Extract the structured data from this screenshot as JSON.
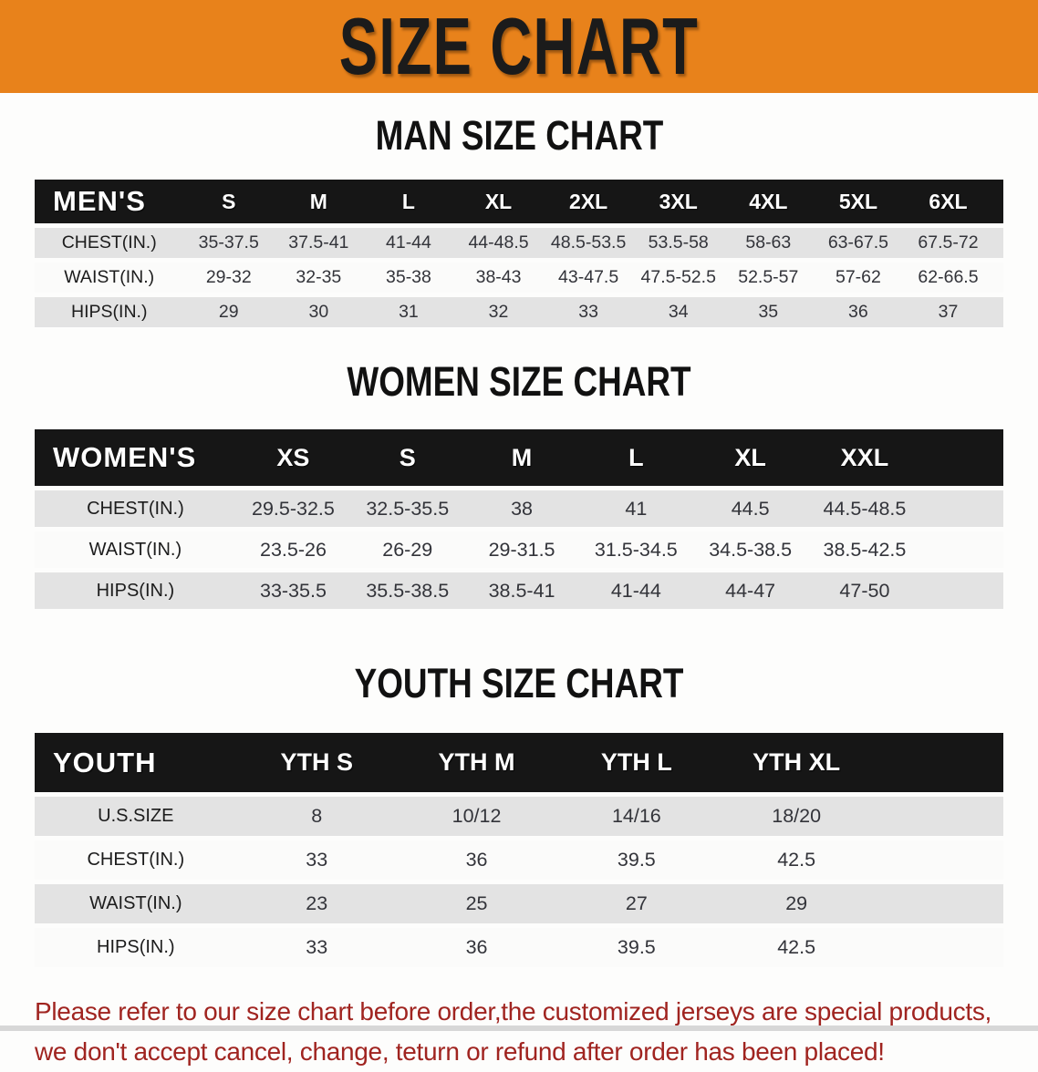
{
  "banner": {
    "title": "SIZE CHART",
    "bg_color": "#e8821b",
    "text_color": "#1b1b1b"
  },
  "sections": [
    {
      "id": "men",
      "heading": "MAN SIZE CHART",
      "table": {
        "header_label": "MEN'S",
        "columns": [
          "S",
          "M",
          "L",
          "XL",
          "2XL",
          "3XL",
          "4XL",
          "5XL",
          "6XL"
        ],
        "rows": [
          {
            "label": "CHEST(IN.)",
            "values": [
              "35-37.5",
              "37.5-41",
              "41-44",
              "44-48.5",
              "48.5-53.5",
              "53.5-58",
              "58-63",
              "63-67.5",
              "67.5-72"
            ]
          },
          {
            "label": "WAIST(IN.)",
            "values": [
              "29-32",
              "32-35",
              "35-38",
              "38-43",
              "43-47.5",
              "47.5-52.5",
              "52.5-57",
              "57-62",
              "62-66.5"
            ]
          },
          {
            "label": "HIPS(IN.)",
            "values": [
              "29",
              "30",
              "31",
              "32",
              "33",
              "34",
              "35",
              "36",
              "37"
            ]
          }
        ]
      }
    },
    {
      "id": "women",
      "heading": "WOMEN SIZE CHART",
      "table": {
        "header_label": "WOMEN'S",
        "columns": [
          "XS",
          "S",
          "M",
          "L",
          "XL",
          "XXL"
        ],
        "rows": [
          {
            "label": "CHEST(IN.)",
            "values": [
              "29.5-32.5",
              "32.5-35.5",
              "38",
              "41",
              "44.5",
              "44.5-48.5"
            ]
          },
          {
            "label": "WAIST(IN.)",
            "values": [
              "23.5-26",
              "26-29",
              "29-31.5",
              "31.5-34.5",
              "34.5-38.5",
              "38.5-42.5"
            ]
          },
          {
            "label": "HIPS(IN.)",
            "values": [
              "33-35.5",
              "35.5-38.5",
              "38.5-41",
              "41-44",
              "44-47",
              "47-50"
            ]
          }
        ]
      }
    },
    {
      "id": "youth",
      "heading": "YOUTH SIZE CHART",
      "table": {
        "header_label": "YOUTH",
        "columns": [
          "YTH S",
          "YTH M",
          "YTH L",
          "YTH XL"
        ],
        "rows": [
          {
            "label": "U.S.SIZE",
            "values": [
              "8",
              "10/12",
              "14/16",
              "18/20"
            ]
          },
          {
            "label": "CHEST(IN.)",
            "values": [
              "33",
              "36",
              "39.5",
              "42.5"
            ]
          },
          {
            "label": "WAIST(IN.)",
            "values": [
              "23",
              "25",
              "27",
              "29"
            ]
          },
          {
            "label": "HIPS(IN.)",
            "values": [
              "33",
              "36",
              "39.5",
              "42.5"
            ]
          }
        ]
      }
    }
  ],
  "footer": {
    "line1": "Please refer to our size chart before order,the customized jerseys are special products,",
    "line2": "we don't accept cancel, change, teturn or refund after order has been placed!",
    "text_color": "#a02420"
  },
  "colors": {
    "header_bar": "#161616",
    "row_gray": "#e3e3e3",
    "row_white": "#fbfbfa",
    "bottom_strip": "#d7d7d7"
  }
}
